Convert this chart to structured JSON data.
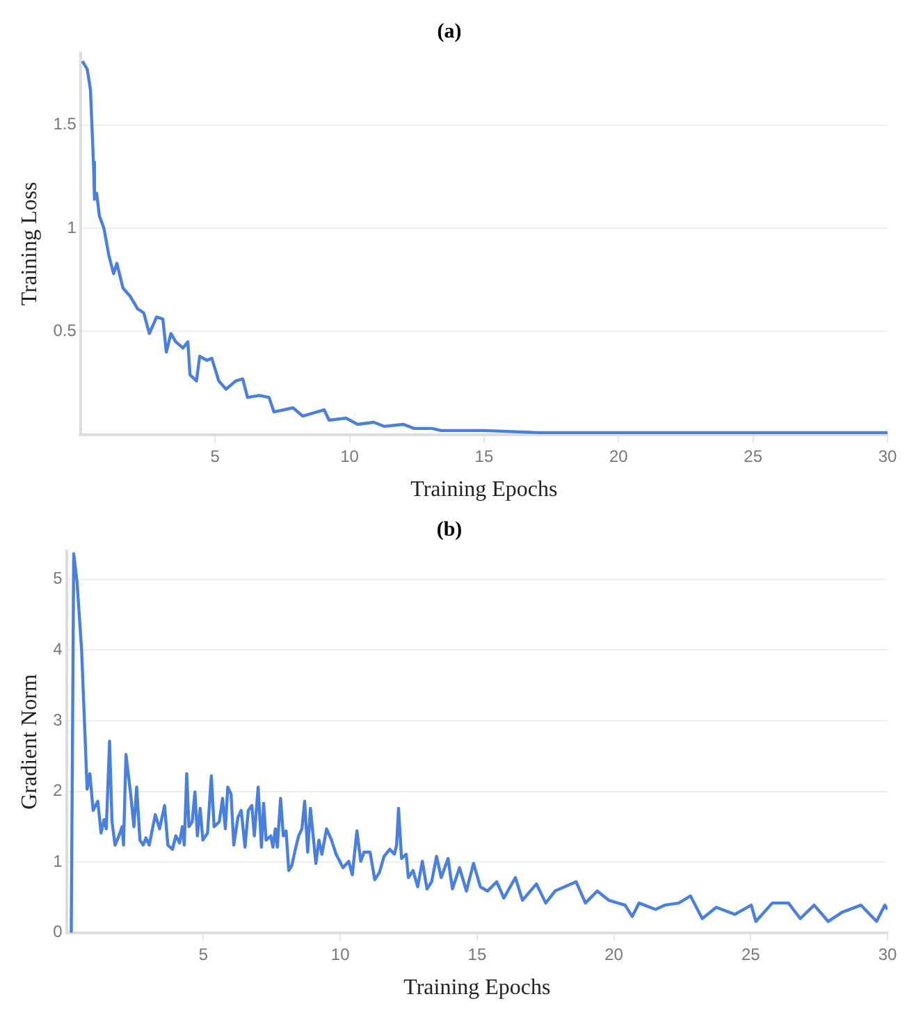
{
  "chart_data": [
    {
      "type": "line",
      "title": "(a)",
      "xlabel": "Training Epochs",
      "ylabel": "Training Loss",
      "xlim": [
        0,
        30
      ],
      "ylim": [
        0,
        1.85
      ],
      "xticks": [
        5,
        10,
        15,
        20,
        25,
        30
      ],
      "yticks": [
        0.5,
        1,
        1.5
      ],
      "grid": "y",
      "series": [
        {
          "color": "#4a80dc",
          "x": [
            0.07,
            0.25,
            0.37,
            0.48,
            0.52,
            0.6,
            0.7,
            0.87,
            1.05,
            1.23,
            1.35,
            1.58,
            1.85,
            2.12,
            2.35,
            2.56,
            2.83,
            3.06,
            3.19,
            3.36,
            3.54,
            3.81,
            3.99,
            4.07,
            4.31,
            4.43,
            4.7,
            4.88,
            5.14,
            5.41,
            5.77,
            6.03,
            6.21,
            6.65,
            7.01,
            7.19,
            7.9,
            8.26,
            9.06,
            9.24,
            9.86,
            10.3,
            10.9,
            11.3,
            12.0,
            12.4,
            13.06,
            13.4,
            15,
            17,
            20,
            25,
            30
          ],
          "values": [
            1.81,
            1.77,
            1.67,
            1.32,
            1.14,
            1.17,
            1.06,
            1.0,
            0.87,
            0.78,
            0.83,
            0.71,
            0.67,
            0.61,
            0.59,
            0.49,
            0.57,
            0.56,
            0.4,
            0.49,
            0.45,
            0.42,
            0.45,
            0.29,
            0.26,
            0.38,
            0.36,
            0.37,
            0.26,
            0.22,
            0.26,
            0.27,
            0.18,
            0.19,
            0.18,
            0.11,
            0.13,
            0.09,
            0.12,
            0.07,
            0.08,
            0.05,
            0.06,
            0.04,
            0.05,
            0.03,
            0.03,
            0.02,
            0.02,
            0.01,
            0.01,
            0.01,
            0.01
          ]
        }
      ]
    },
    {
      "type": "line",
      "title": "(b)",
      "xlabel": "Training Epochs",
      "ylabel": "Gradient Norm",
      "xlim": [
        0,
        30
      ],
      "ylim": [
        0,
        5.4
      ],
      "xticks": [
        5,
        10,
        15,
        20,
        25,
        30
      ],
      "yticks": [
        0,
        1,
        2,
        3,
        4,
        5
      ],
      "grid": "y",
      "series": [
        {
          "color": "#4a80dc",
          "x": [
            0.17,
            0.26,
            0.38,
            0.55,
            0.75,
            0.85,
            0.97,
            1.14,
            1.26,
            1.37,
            1.45,
            1.57,
            1.66,
            1.77,
            1.91,
            2.03,
            2.08,
            2.17,
            2.34,
            2.46,
            2.56,
            2.68,
            2.8,
            2.9,
            3.02,
            3.24,
            3.4,
            3.58,
            3.7,
            3.87,
            3.99,
            4.13,
            4.23,
            4.3,
            4.39,
            4.47,
            4.59,
            4.69,
            4.78,
            4.88,
            4.98,
            5.15,
            5.29,
            5.39,
            5.58,
            5.7,
            5.8,
            5.89,
            6.01,
            6.11,
            6.26,
            6.38,
            6.52,
            6.64,
            6.77,
            6.86,
            7.0,
            7.12,
            7.2,
            7.29,
            7.46,
            7.54,
            7.63,
            7.7,
            7.82,
            7.92,
            8.02,
            8.12,
            8.23,
            8.36,
            8.48,
            8.6,
            8.7,
            8.81,
            8.91,
            9.11,
            9.22,
            9.33,
            9.5,
            9.68,
            9.85,
            10.1,
            10.31,
            10.44,
            10.61,
            10.75,
            10.87,
            11.09,
            11.26,
            11.43,
            11.6,
            11.81,
            11.98,
            12.06,
            12.13,
            12.24,
            12.41,
            12.49,
            12.66,
            12.83,
            13.0,
            13.17,
            13.34,
            13.52,
            13.69,
            13.94,
            14.1,
            14.36,
            14.61,
            14.87,
            15.12,
            15.38,
            15.72,
            15.98,
            16.4,
            16.66,
            17.17,
            17.51,
            17.85,
            18.62,
            18.96,
            19.39,
            19.81,
            20.41,
            20.67,
            20.92,
            21.52,
            21.86,
            22.37,
            22.8,
            23.23,
            23.74,
            24.42,
            25.02,
            25.19,
            25.79,
            26.38,
            26.81,
            27.32,
            27.83,
            28.34,
            29.03,
            29.6,
            29.9,
            30
          ],
          "values": [
            0,
            5.36,
            4.97,
            3.99,
            2.03,
            2.25,
            1.73,
            1.86,
            1.41,
            1.6,
            1.47,
            2.71,
            1.57,
            1.24,
            1.37,
            1.5,
            1.24,
            2.52,
            1.96,
            1.5,
            2.06,
            1.31,
            1.24,
            1.34,
            1.24,
            1.67,
            1.47,
            1.8,
            1.24,
            1.18,
            1.37,
            1.27,
            1.5,
            1.24,
            2.25,
            1.5,
            1.57,
            1.99,
            1.37,
            1.76,
            1.31,
            1.41,
            2.22,
            1.5,
            1.57,
            1.9,
            1.47,
            2.06,
            1.96,
            1.24,
            1.63,
            1.73,
            1.21,
            1.73,
            1.8,
            1.37,
            2.06,
            1.21,
            1.83,
            1.31,
            1.37,
            1.21,
            1.47,
            1.21,
            1.9,
            1.37,
            1.44,
            0.88,
            0.95,
            1.18,
            1.37,
            1.47,
            1.86,
            1.14,
            1.76,
            0.98,
            1.31,
            1.11,
            1.47,
            1.31,
            1.11,
            0.92,
            1.01,
            0.82,
            1.44,
            1.01,
            1.14,
            1.14,
            0.75,
            0.85,
            1.08,
            1.18,
            1.11,
            1.24,
            1.76,
            1.05,
            1.11,
            0.78,
            0.88,
            0.65,
            1.01,
            0.62,
            0.72,
            1.08,
            0.78,
            1.05,
            0.62,
            0.92,
            0.59,
            0.98,
            0.65,
            0.59,
            0.72,
            0.49,
            0.78,
            0.46,
            0.69,
            0.42,
            0.59,
            0.72,
            0.42,
            0.59,
            0.46,
            0.39,
            0.23,
            0.42,
            0.33,
            0.39,
            0.42,
            0.52,
            0.2,
            0.36,
            0.26,
            0.39,
            0.16,
            0.42,
            0.42,
            0.2,
            0.39,
            0.16,
            0.29,
            0.39,
            0.16,
            0.39,
            0.33
          ]
        }
      ]
    }
  ]
}
